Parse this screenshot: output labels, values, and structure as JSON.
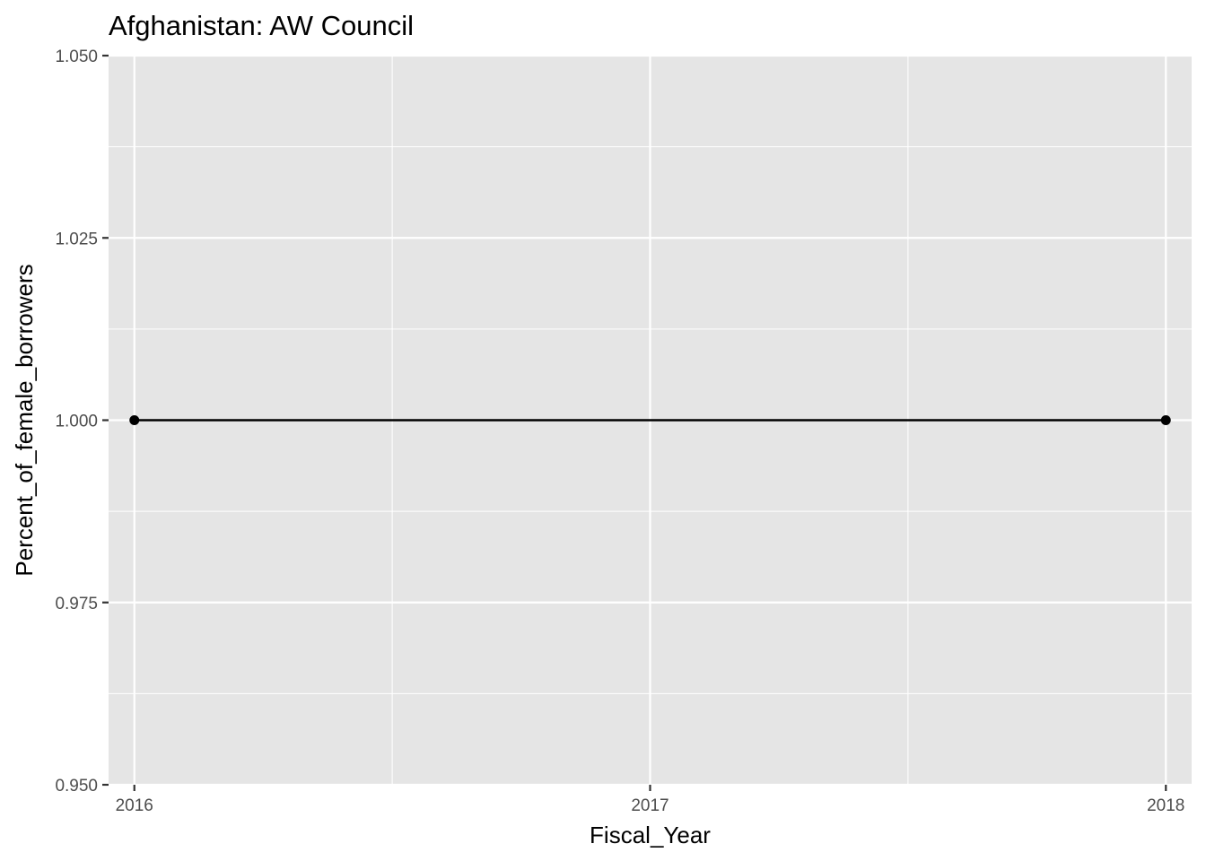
{
  "chart_data": {
    "type": "line",
    "title": "Afghanistan:  AW Council",
    "xlabel": "Fiscal_Year",
    "ylabel": "Percent_of_female_borrowers",
    "x_ticks": [
      2016,
      2017,
      2018
    ],
    "x_tick_labels": [
      "2016",
      "2017",
      "2018"
    ],
    "y_ticks": [
      0.95,
      0.975,
      1.0,
      1.025,
      1.05
    ],
    "y_tick_labels": [
      "0.950",
      "0.975",
      "1.000",
      "1.025",
      "1.050"
    ],
    "xlim": [
      2015.95,
      2018.05
    ],
    "ylim": [
      0.95,
      1.05
    ],
    "grid": true,
    "series": [
      {
        "x": [
          2016,
          2018
        ],
        "y": [
          1.0,
          1.0
        ]
      }
    ]
  },
  "colors": {
    "panel_background": "#e5e5e5",
    "grid_line": "#ffffff",
    "series_line": "#000000",
    "tick_text": "#4d4d4d",
    "axis_tick": "#333333"
  }
}
